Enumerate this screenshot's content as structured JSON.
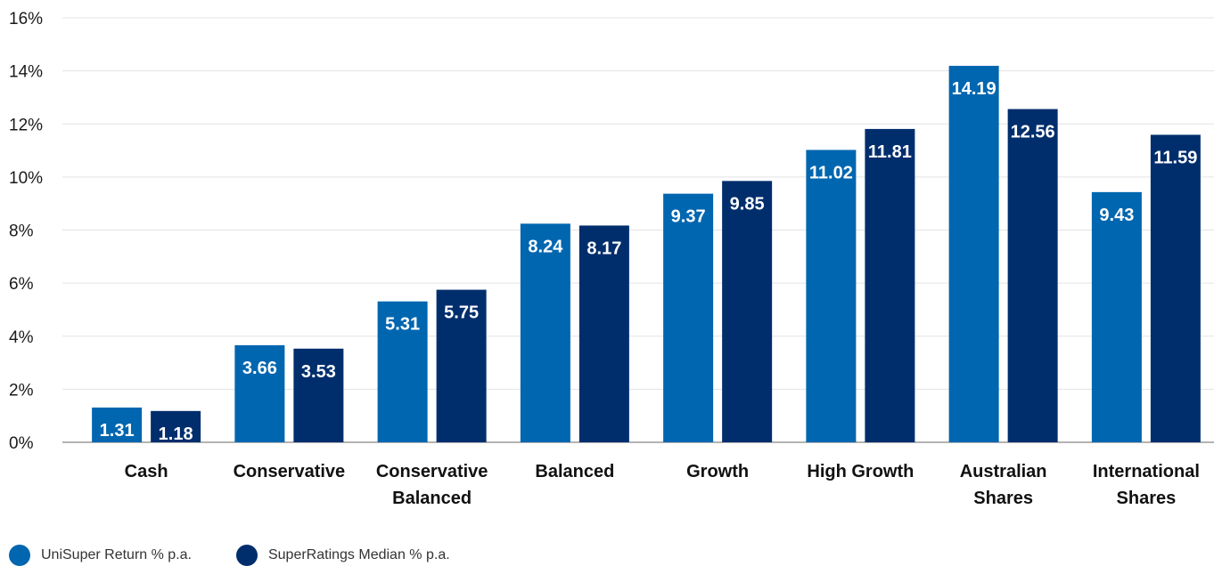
{
  "chart_data": {
    "type": "bar",
    "categories": [
      [
        "Cash"
      ],
      [
        "Conservative"
      ],
      [
        "Conservative",
        "Balanced"
      ],
      [
        "Balanced"
      ],
      [
        "Growth"
      ],
      [
        "High Growth"
      ],
      [
        "Australian",
        "Shares"
      ],
      [
        "International",
        "Shares"
      ]
    ],
    "series": [
      {
        "name": "UniSuper Return % p.a.",
        "color": "#0066B0",
        "values": [
          1.31,
          3.66,
          5.31,
          8.24,
          9.37,
          11.02,
          14.19,
          9.43
        ],
        "labels": [
          "1.31",
          "3.66",
          "5.31",
          "8.24",
          "9.37",
          "11.02",
          "14.19",
          "9.43"
        ]
      },
      {
        "name": "SuperRatings Median % p.a.",
        "color": "#002E6D",
        "values": [
          1.18,
          3.53,
          5.75,
          8.17,
          9.85,
          11.81,
          12.56,
          11.59
        ],
        "labels": [
          "1.18",
          "3.53",
          "5.75",
          "8.17",
          "9.85",
          "11.81",
          "12.56",
          "11.59"
        ]
      }
    ],
    "ylim": [
      0,
      16
    ],
    "yticks": [
      0,
      2,
      4,
      6,
      8,
      10,
      12,
      14,
      16
    ],
    "ytick_labels": [
      "0%",
      "2%",
      "4%",
      "6%",
      "8%",
      "10%",
      "12%",
      "14%",
      "16%"
    ],
    "grid": true,
    "legend_position": "bottom-left"
  }
}
